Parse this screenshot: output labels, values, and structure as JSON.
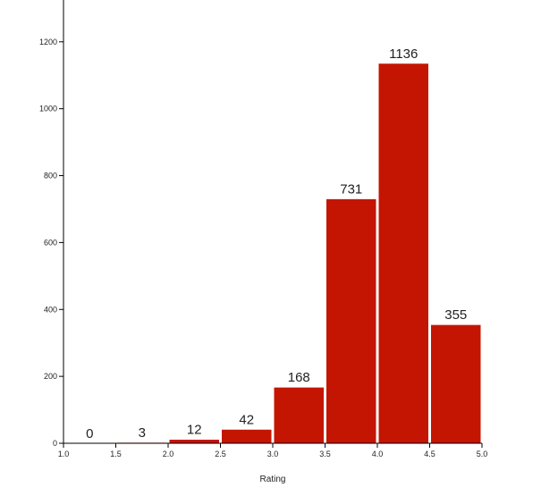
{
  "chart_data": {
    "type": "bar",
    "bins": [
      {
        "x0": 1.0,
        "x1": 1.5,
        "count": 0
      },
      {
        "x0": 1.5,
        "x1": 2.0,
        "count": 3
      },
      {
        "x0": 2.0,
        "x1": 2.5,
        "count": 12
      },
      {
        "x0": 2.5,
        "x1": 3.0,
        "count": 42
      },
      {
        "x0": 3.0,
        "x1": 3.5,
        "count": 168
      },
      {
        "x0": 3.5,
        "x1": 4.0,
        "count": 731
      },
      {
        "x0": 4.0,
        "x1": 4.5,
        "count": 1136
      },
      {
        "x0": 4.5,
        "x1": 5.0,
        "count": 355
      }
    ],
    "x_ticks": [
      "1.0",
      "1.5",
      "2.0",
      "2.5",
      "3.0",
      "3.5",
      "4.0",
      "4.5",
      "5.0"
    ],
    "y_ticks": [
      "0",
      "200",
      "400",
      "600",
      "800",
      "1000",
      "1200"
    ],
    "xlabel": "Rating",
    "ylabel": "",
    "title": "",
    "xlim": [
      1.0,
      5.0
    ],
    "ylim": [
      0,
      1325
    ],
    "bar_color": "#c41502"
  }
}
